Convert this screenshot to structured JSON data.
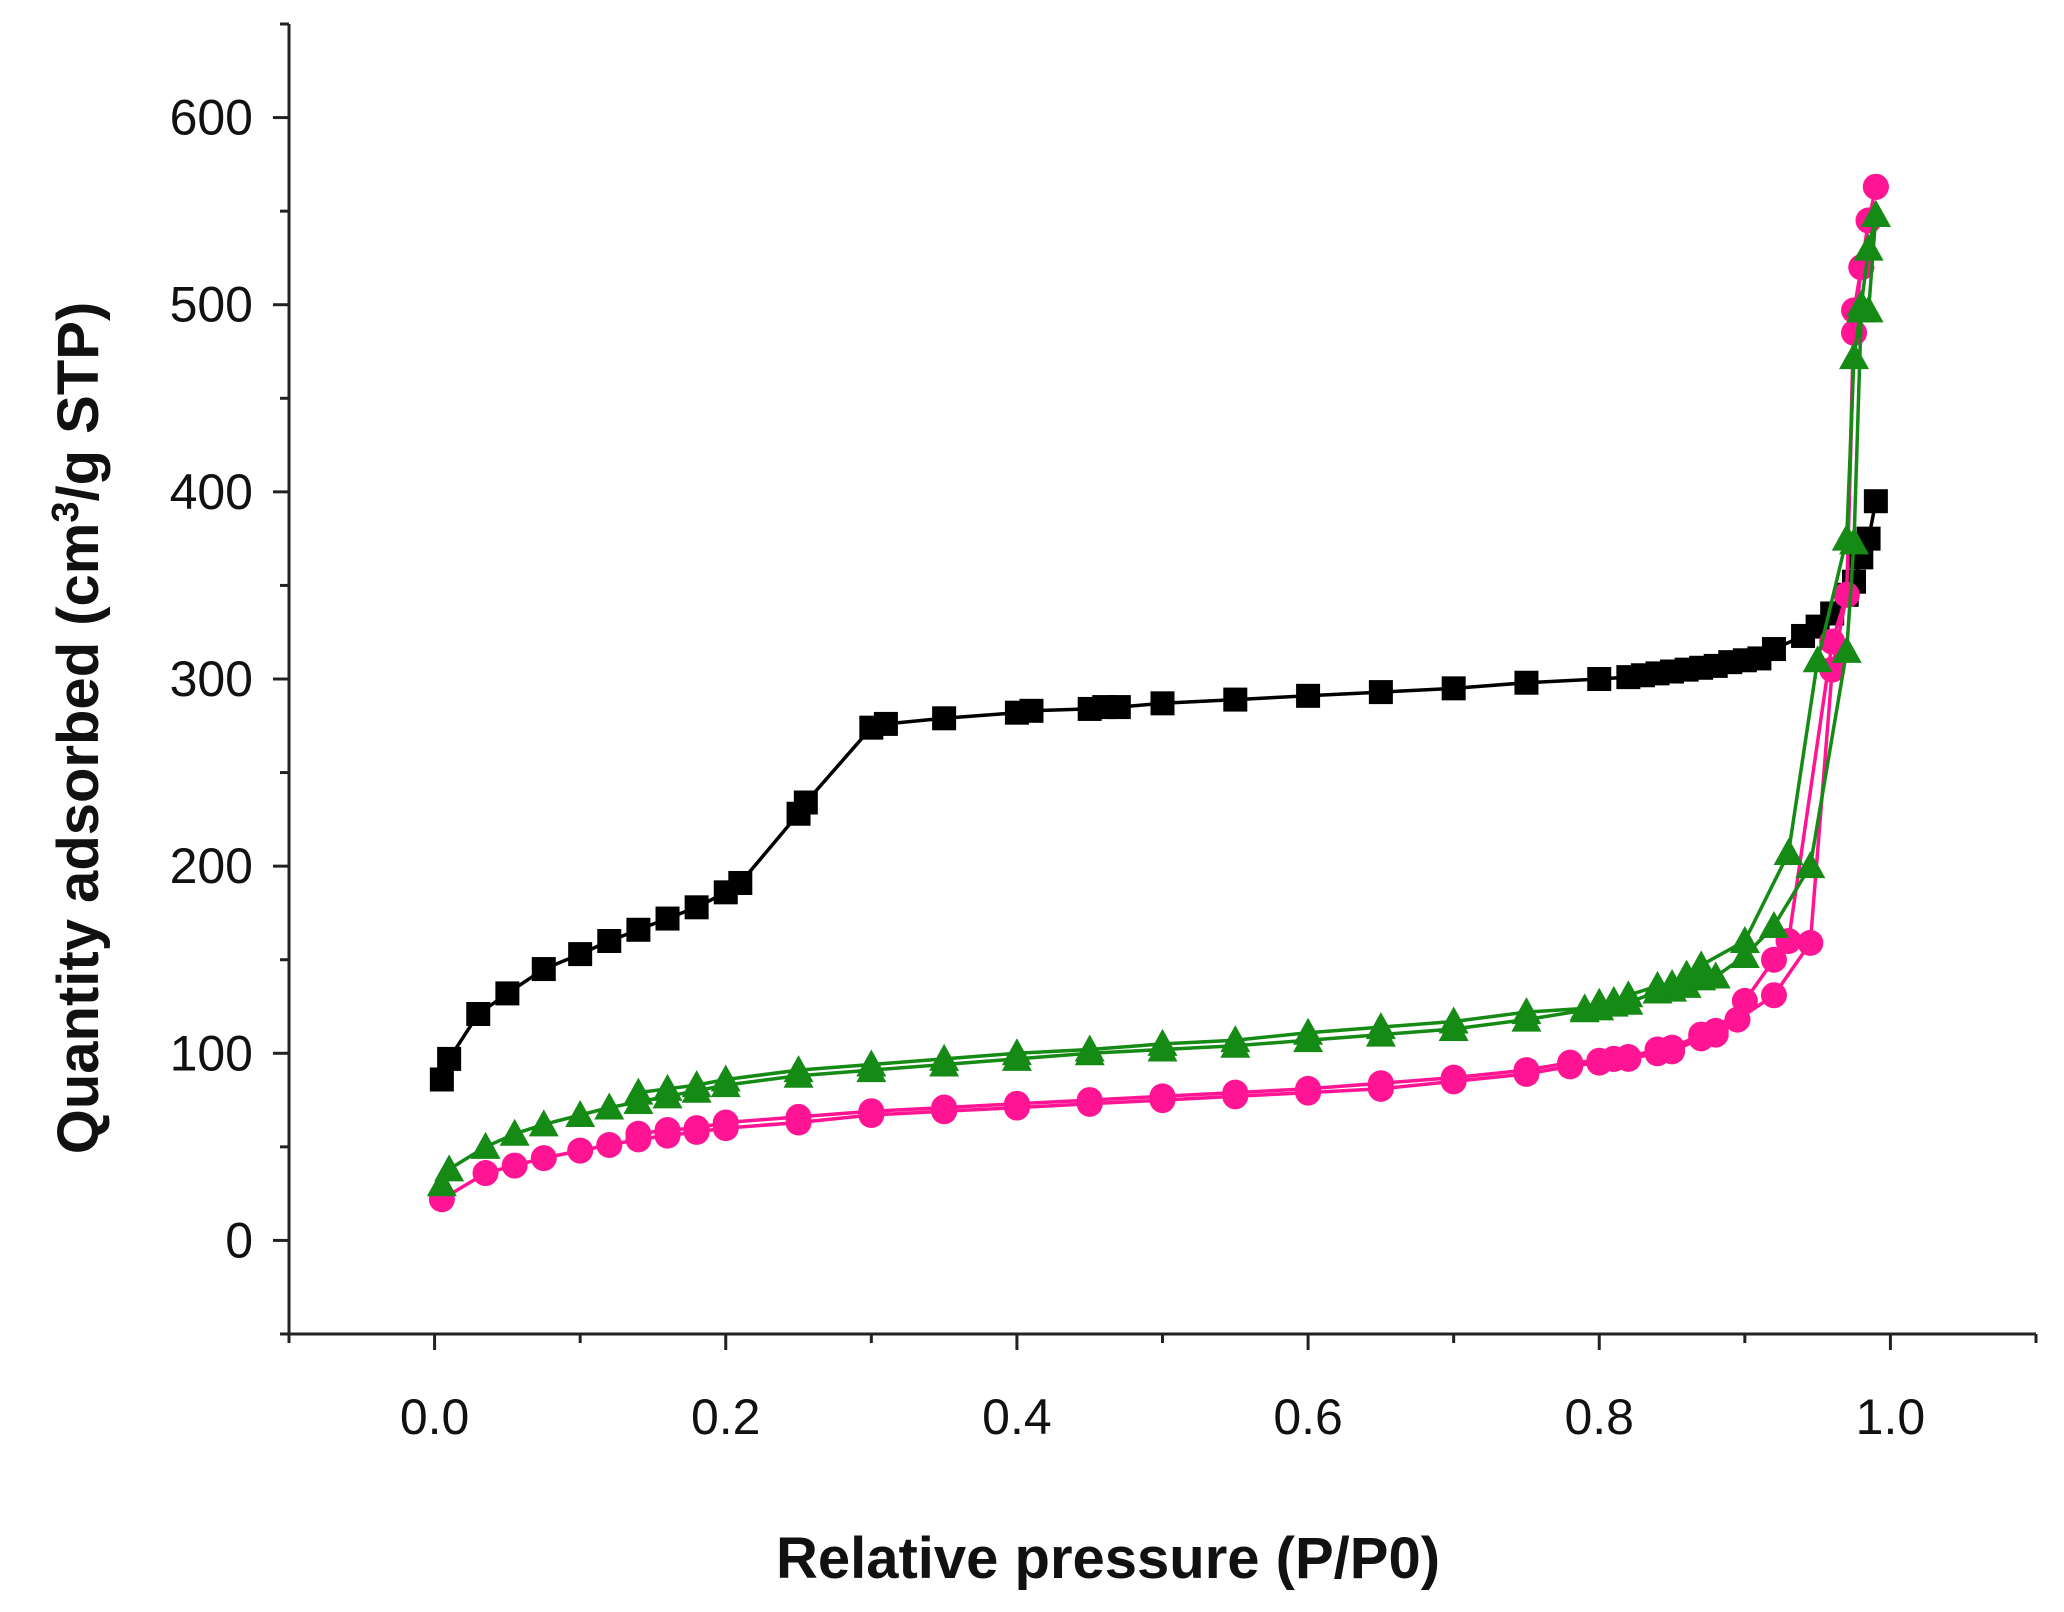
{
  "chart_data": {
    "type": "line",
    "title": "",
    "xlabel": "Relative pressure (P/P0)",
    "ylabel_parts": [
      "Quantity adsorbed (cm",
      "3",
      "/g STP)"
    ],
    "xlim": [
      -0.1,
      1.1
    ],
    "ylim": [
      -50,
      650
    ],
    "xticks": [
      0.0,
      0.2,
      0.4,
      0.6,
      0.8,
      1.0
    ],
    "xtick_labels": [
      "0.0",
      "0.2",
      "0.4",
      "0.6",
      "0.8",
      "1.0"
    ],
    "yticks": [
      0,
      100,
      200,
      300,
      400,
      500,
      600
    ],
    "ytick_labels": [
      "0",
      "100",
      "200",
      "300",
      "400",
      "500",
      "600"
    ],
    "grid": false,
    "legend": "none",
    "series": [
      {
        "marker": "square",
        "color": "#000000",
        "x": [
          0.005,
          0.01,
          0.03,
          0.05,
          0.075,
          0.1,
          0.12,
          0.14,
          0.16,
          0.18,
          0.2,
          0.21,
          0.25,
          0.255,
          0.3,
          0.31,
          0.35,
          0.4,
          0.41,
          0.45,
          0.46,
          0.47,
          0.5,
          0.55,
          0.6,
          0.65,
          0.7,
          0.75,
          0.8,
          0.82,
          0.83,
          0.84,
          0.85,
          0.86,
          0.87,
          0.88,
          0.89,
          0.9,
          0.91,
          0.92,
          0.94,
          0.95,
          0.96,
          0.97,
          0.975,
          0.98,
          0.985,
          0.99
        ],
        "y": [
          86,
          97,
          121,
          132,
          145,
          153,
          160,
          166,
          172,
          178,
          186,
          191,
          228,
          234,
          274,
          276,
          279,
          282,
          283,
          284,
          285,
          285,
          287,
          289,
          291,
          293,
          295,
          298,
          300,
          301,
          302,
          303,
          304,
          305,
          306,
          307,
          309,
          310,
          311,
          316,
          323,
          328,
          335,
          345,
          352,
          365,
          375,
          395
        ]
      },
      {
        "marker": "circle",
        "color": "#ff1493",
        "x": [
          0.005,
          0.035,
          0.055,
          0.075,
          0.1,
          0.12,
          0.14,
          0.16,
          0.18,
          0.2,
          0.25,
          0.3,
          0.35,
          0.4,
          0.45,
          0.5,
          0.55,
          0.6,
          0.65,
          0.7,
          0.75,
          0.78,
          0.8,
          0.81,
          0.82,
          0.84,
          0.85,
          0.87,
          0.88,
          0.895,
          0.92,
          0.945,
          0.96,
          0.97,
          0.975,
          0.98,
          0.985,
          0.99,
          0.99,
          0.985,
          0.98,
          0.975,
          0.97,
          0.96,
          0.93,
          0.92,
          0.9,
          0.88,
          0.87,
          0.85,
          0.84,
          0.82,
          0.81,
          0.8,
          0.78,
          0.75,
          0.7,
          0.65,
          0.6,
          0.55,
          0.5,
          0.45,
          0.4,
          0.35,
          0.3,
          0.25,
          0.2,
          0.18,
          0.16,
          0.14
        ],
        "y": [
          22,
          36,
          40,
          44,
          48,
          51,
          54,
          56,
          58,
          60,
          63,
          67,
          69,
          71,
          73,
          75,
          77,
          79,
          81,
          85,
          89,
          93,
          95,
          97,
          97,
          100,
          101,
          108,
          110,
          118,
          131,
          159,
          305,
          345,
          485,
          520,
          545,
          563,
          563,
          545,
          520,
          497,
          345,
          320,
          160,
          150,
          128,
          112,
          110,
          103,
          102,
          98,
          97,
          96,
          95,
          91,
          87,
          84,
          81,
          79,
          77,
          75,
          73,
          71,
          69,
          66,
          63,
          60,
          59,
          57
        ]
      },
      {
        "marker": "triangle",
        "color": "#158a15",
        "x": [
          0.005,
          0.01,
          0.035,
          0.055,
          0.075,
          0.1,
          0.12,
          0.14,
          0.16,
          0.18,
          0.2,
          0.25,
          0.3,
          0.35,
          0.4,
          0.45,
          0.5,
          0.55,
          0.6,
          0.65,
          0.7,
          0.75,
          0.79,
          0.8,
          0.81,
          0.82,
          0.84,
          0.85,
          0.86,
          0.87,
          0.88,
          0.9,
          0.92,
          0.945,
          0.97,
          0.975,
          0.98,
          0.985,
          0.99,
          0.99,
          0.985,
          0.98,
          0.975,
          0.97,
          0.95,
          0.93,
          0.9,
          0.87,
          0.86,
          0.85,
          0.84,
          0.82,
          0.81,
          0.8,
          0.79,
          0.75,
          0.7,
          0.65,
          0.6,
          0.55,
          0.5,
          0.45,
          0.4,
          0.35,
          0.3,
          0.25,
          0.2,
          0.18,
          0.16,
          0.14
        ],
        "y": [
          30,
          38,
          50,
          57,
          62,
          67,
          71,
          74,
          77,
          80,
          83,
          88,
          91,
          94,
          97,
          100,
          102,
          104,
          107,
          110,
          113,
          118,
          123,
          124,
          126,
          127,
          133,
          134,
          136,
          140,
          141,
          152,
          168,
          200,
          315,
          373,
          497,
          497,
          548,
          548,
          530,
          500,
          472,
          375,
          310,
          207,
          160,
          147,
          142,
          137,
          136,
          131,
          128,
          127,
          124,
          122,
          117,
          114,
          111,
          107,
          105,
          102,
          100,
          97,
          94,
          91,
          86,
          83,
          81,
          79
        ]
      }
    ]
  }
}
